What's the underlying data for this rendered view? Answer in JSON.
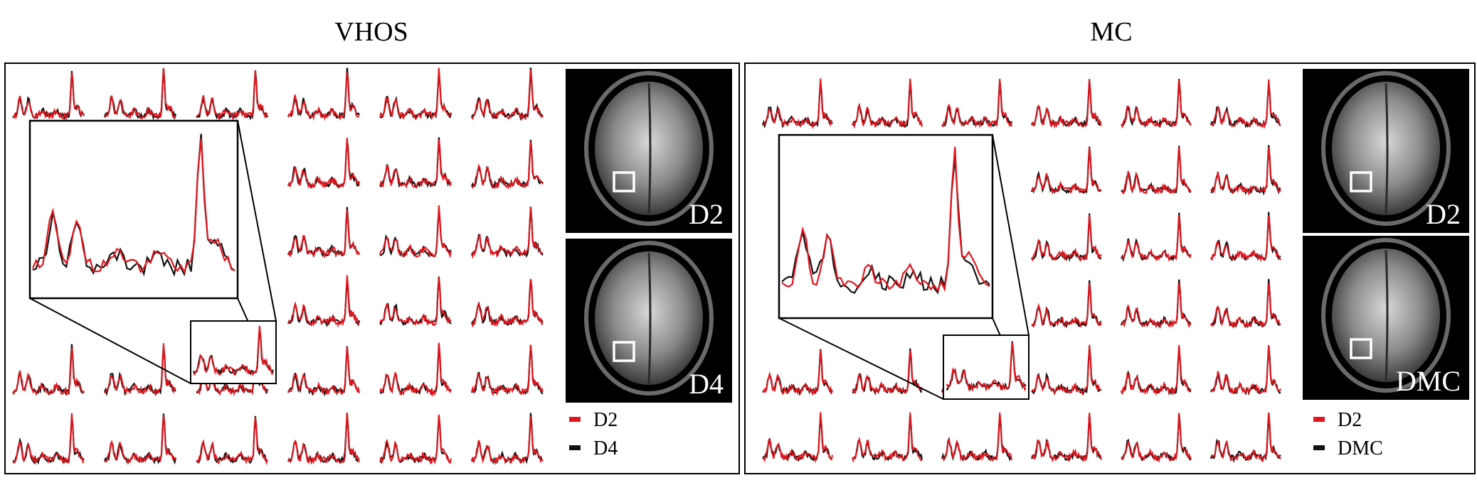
{
  "panels": [
    {
      "title": "VHOS",
      "images": [
        {
          "label": "D2"
        },
        {
          "label": "D4"
        }
      ],
      "legend": [
        {
          "label": "D2",
          "color": "#e3161e"
        },
        {
          "label": "D4",
          "color": "#111111"
        }
      ]
    },
    {
      "title": "MC",
      "images": [
        {
          "label": "D2"
        },
        {
          "label": "DMC"
        }
      ],
      "legend": [
        {
          "label": "D2",
          "color": "#e3161e"
        },
        {
          "label": "DMC",
          "color": "#111111"
        }
      ]
    }
  ],
  "colors": {
    "reference": "#e3161e",
    "comparison": "#111111",
    "mri_background": "#000000"
  },
  "icons": [
    "spectrum-trace",
    "zoom-inset",
    "brain-mri-slice",
    "roi-square"
  ]
}
